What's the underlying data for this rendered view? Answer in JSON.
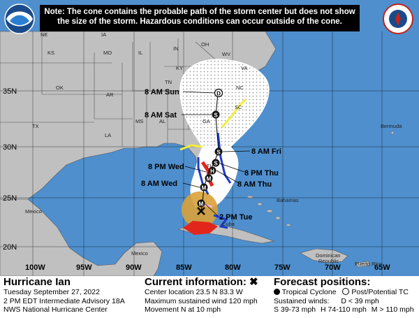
{
  "note": {
    "line1": "Note: The cone contains the probable path of the storm center but does not show",
    "line2": "the size of the storm. Hazardous conditions can occur outside of the cone."
  },
  "logos": {
    "left": "NOAA",
    "right": "NATIONAL WEATHER SERVICE"
  },
  "latitudes": [
    "35N",
    "30N",
    "25N",
    "20N"
  ],
  "longitudes": [
    "100W",
    "95W",
    "90W",
    "85W",
    "80W",
    "75W",
    "70W",
    "65W"
  ],
  "states": [
    "NE",
    "IA",
    "KS",
    "MO",
    "IL",
    "IN",
    "OH",
    "KY",
    "WV",
    "VA",
    "OK",
    "AR",
    "TN",
    "NC",
    "SC",
    "MS",
    "AL",
    "GA",
    "TX",
    "LA",
    "FL"
  ],
  "places": [
    "Bermuda",
    "Mexico",
    "Bahamas",
    "Cuba",
    "Mexico",
    "Dominican",
    "Republic",
    "Puerto Rico"
  ],
  "forecast_labels": {
    "sun": "8 AM Sun",
    "sat": "8 AM Sat",
    "fri": "8 AM Fri",
    "wed_pm": "8 PM Wed",
    "thu_pm": "8 PM Thu",
    "wed_am": "8 AM Wed",
    "thu_am": "8 AM Thu",
    "tue": "2 PM Tue"
  },
  "markers": {
    "major": "M",
    "hurricane": "H",
    "storm": "S",
    "depression": "D"
  },
  "storm": {
    "name": "Hurricane Ian",
    "date": "Tuesday September 27, 2022",
    "advisory": "2 PM EDT Intermediate Advisory 18A",
    "center": "NWS National Hurricane Center"
  },
  "current": {
    "title": "Current information: ✖",
    "location": "Center location 23.5 N 83.3 W",
    "wind": "Maximum sustained wind 120 mph",
    "movement": "Movement N at 10 mph"
  },
  "forecast": {
    "title": "Forecast positions:",
    "tc_label": "Tropical Cyclone",
    "ptc_label": "Post/Potential TC",
    "sustained": "Sustained winds:",
    "d_label": "D < 39 mph",
    "s_label": "S 39-73 mph",
    "h_label": "H 74-110 mph",
    "m_label": "M > 110 mph"
  },
  "colors": {
    "ocean": "#4f8fcd",
    "land": "#c0c0c0",
    "cone": "#ffffff",
    "warning_red": "#e3261c",
    "watch_pink": "#f4b3c6",
    "tropical_storm_warning_blue": "#1d3cc9",
    "tropical_storm_watch_yellow": "#f4ee3a",
    "wind_field": "#d9a23a"
  }
}
